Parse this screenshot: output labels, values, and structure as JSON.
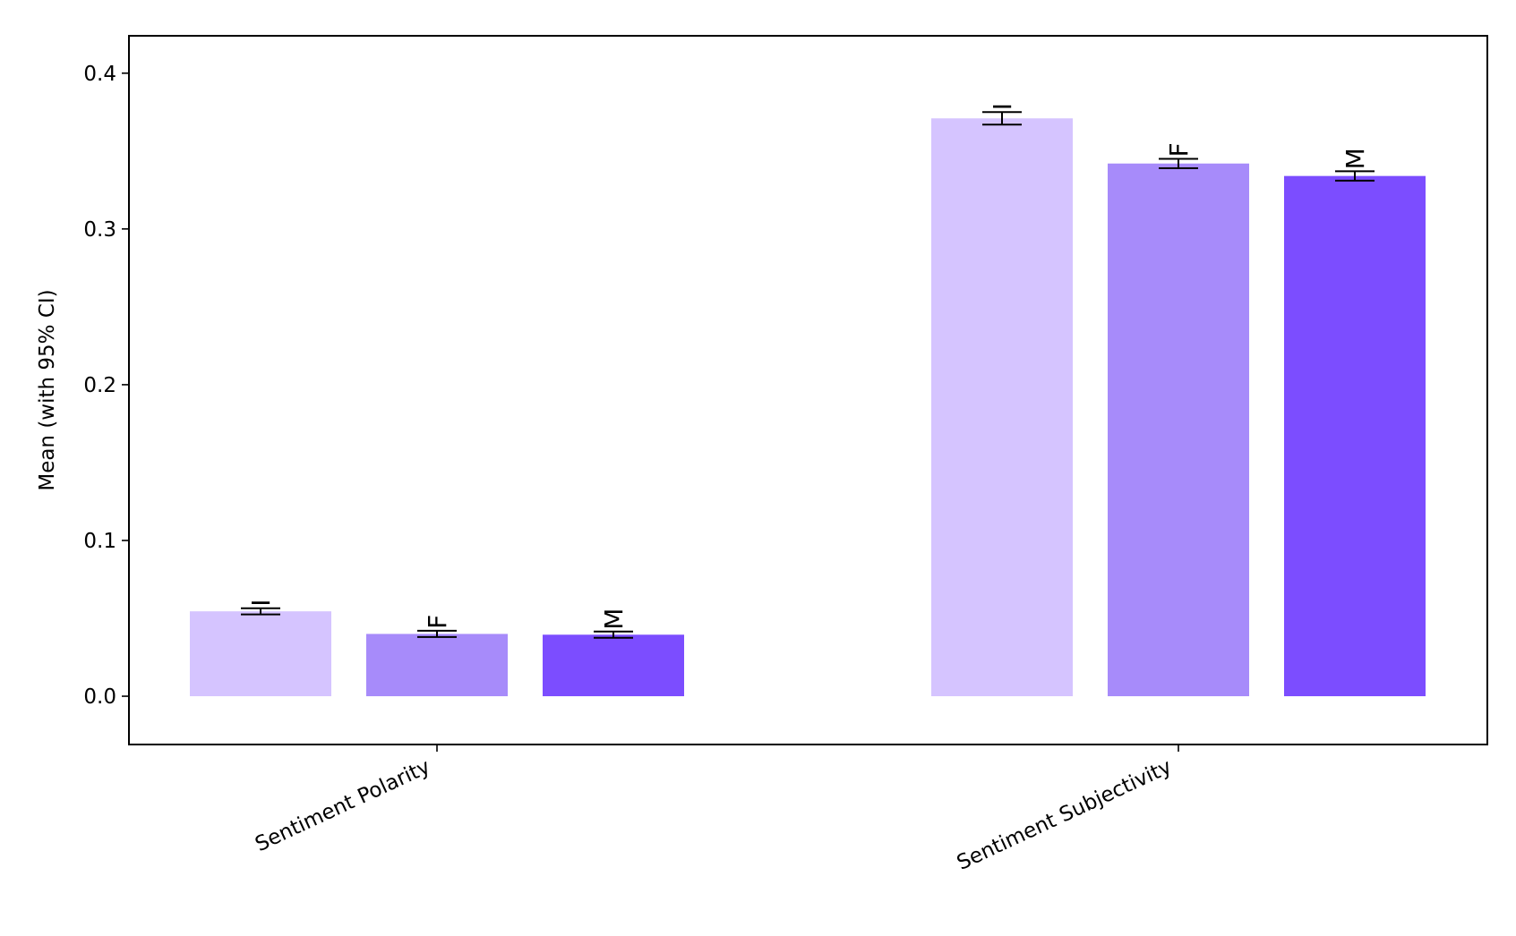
{
  "chart_data": {
    "type": "bar",
    "title": "",
    "xlabel": "",
    "ylabel": "Mean (with 95% CI)",
    "categories": [
      "Sentiment Polarity",
      "Sentiment Subjectivity"
    ],
    "series": [
      {
        "label": "I",
        "color": "#d5c4ff",
        "values": [
          0.0545,
          0.371
        ],
        "ci": [
          [
            0.0525,
            0.0565
          ],
          [
            0.367,
            0.375
          ]
        ]
      },
      {
        "label": "F",
        "color": "#a78bfa",
        "values": [
          0.04,
          0.342
        ],
        "ci": [
          [
            0.038,
            0.042
          ],
          [
            0.339,
            0.345
          ]
        ]
      },
      {
        "label": "M",
        "color": "#7c4dff",
        "values": [
          0.0395,
          0.334
        ],
        "ci": [
          [
            0.0375,
            0.0415
          ],
          [
            0.331,
            0.337
          ]
        ]
      }
    ],
    "ylim": [
      -0.031,
      0.424
    ],
    "yticks": [
      0.0,
      0.1,
      0.2,
      0.3,
      0.4
    ],
    "ytick_labels": [
      "0.0",
      "0.1",
      "0.2",
      "0.3",
      "0.4"
    ],
    "grid": false,
    "legend": "none"
  }
}
